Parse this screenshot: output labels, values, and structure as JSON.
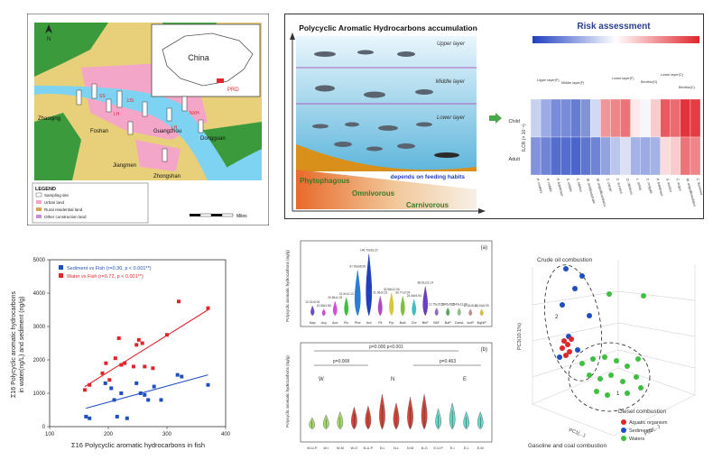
{
  "map_panel": {
    "country_label": "China",
    "region_label": "PRD",
    "north_label": "N",
    "cities": [
      "Zhaoqing",
      "Foshan",
      "Guangzhou",
      "Dongguan",
      "Jiangmen",
      "Zhongshan"
    ],
    "sites": [
      "SS",
      "LH",
      "JJS",
      "LH",
      "NXH"
    ],
    "legend_title": "LEGEND",
    "legend_items": [
      "Sampling site",
      "Urban land",
      "Rural residential land",
      "Other construction land"
    ],
    "scale_unit": "Miles",
    "colors": {
      "urban": "#f4a6c8",
      "forest": "#3a9a3c",
      "crop": "#d9c96b",
      "water": "#7fd3f2"
    }
  },
  "accumulation_panel": {
    "title": "Polycyclic Aromatic Hydrocarbons accumulation",
    "layers": [
      "Upper layer",
      "Middle layer",
      "Lower layer"
    ],
    "feeding_labels": [
      "Phytophagous",
      "Omnivorous",
      "Carnivorous"
    ],
    "caption": "depends on feeding habits"
  },
  "risk_panel": {
    "title": "Risk assessment",
    "row_labels": [
      "Child",
      "Adult"
    ],
    "axis_label": "ILCR (× 10⁻⁶)",
    "groups": [
      "Upper layer(F)",
      "Middle layer(F)",
      "Lower layer(F)",
      "Benthic(O)",
      "Lower layer(C)",
      "Benthic(C)"
    ],
    "species": [
      "H. molitrix",
      "H. nobilis",
      "P. fulvidraco",
      "A. nobilis",
      "C. idellus",
      "M. amblycephala",
      "M. anguillicaudatus",
      "C. carpio",
      "C. auratus",
      "O. niloticus",
      "L. rohita",
      "C. mrigala",
      "P. fulvidraco",
      "S. asotus",
      "C. argus",
      "M. anguillicaudatus",
      "C. fluminea"
    ],
    "child_values": [
      0.38,
      0.28,
      0.2,
      0.2,
      0.16,
      0.22,
      0.4,
      0.74,
      0.78,
      0.82,
      0.55,
      0.48,
      0.62,
      0.88,
      0.84,
      0.97,
      0.95
    ],
    "adult_values": [
      0.22,
      0.18,
      0.12,
      0.12,
      0.1,
      0.14,
      0.18,
      0.26,
      0.35,
      0.42,
      0.3,
      0.28,
      0.3,
      0.58,
      0.62,
      0.82,
      0.78
    ]
  },
  "scatter_panel": {
    "ylabel_line1": "Σ16 Polycyclic aromatic hydrocarbons",
    "ylabel_line2": "in water(ng/L) and sediment (ng/g)",
    "xlabel": "Σ16 Polycyclic aromatic hydrocarbons in fish",
    "legend": [
      "Sediment vs Fish (r=0.30, p < 0.001**)",
      "Water vs Fish (r=0.72, p < 0.001**)"
    ],
    "chart_data": {
      "type": "scatter",
      "xlim": [
        100,
        400
      ],
      "ylim": [
        0,
        5000
      ],
      "x_ticks": [
        100,
        200,
        300,
        400
      ],
      "y_ticks": [
        0,
        1000,
        2000,
        3000,
        4000,
        5000
      ],
      "series": [
        {
          "name": "Sediment vs Fish",
          "color": "#1f4fbf",
          "points": [
            [
              162,
              300
            ],
            [
              168,
              250
            ],
            [
              195,
              1300
            ],
            [
              205,
              1150
            ],
            [
              210,
              800
            ],
            [
              215,
              300
            ],
            [
              222,
              1000
            ],
            [
              232,
              250
            ],
            [
              248,
              1300
            ],
            [
              255,
              1000
            ],
            [
              262,
              950
            ],
            [
              268,
              800
            ],
            [
              278,
              1200
            ],
            [
              290,
              800
            ],
            [
              318,
              1550
            ],
            [
              325,
              1500
            ],
            [
              370,
              1250
            ]
          ],
          "fit": [
            [
              162,
              550
            ],
            [
              370,
              1550
            ]
          ]
        },
        {
          "name": "Water vs Fish",
          "color": "#e0262d",
          "points": [
            [
              160,
              1100
            ],
            [
              168,
              1250
            ],
            [
              190,
              1600
            ],
            [
              196,
              1900
            ],
            [
              202,
              1400
            ],
            [
              212,
              2050
            ],
            [
              218,
              2650
            ],
            [
              222,
              1850
            ],
            [
              228,
              1900
            ],
            [
              243,
              1800
            ],
            [
              248,
              2450
            ],
            [
              252,
              2600
            ],
            [
              258,
              2500
            ],
            [
              262,
              1800
            ],
            [
              276,
              1750
            ],
            [
              300,
              2750
            ],
            [
              320,
              3750
            ],
            [
              370,
              3550
            ]
          ],
          "fit": [
            [
              160,
              1200
            ],
            [
              370,
              3500
            ]
          ]
        }
      ]
    }
  },
  "violin_panel_a": {
    "panel_tag": "(a)",
    "ylabel": "Polycyclic aromatic hydrocarbons (ng/g)",
    "categories": [
      "Nap",
      "Acy",
      "Ace",
      "Flu",
      "Phe",
      "Ant",
      "Flt",
      "Pyr",
      "BaA",
      "Chr",
      "BbF",
      "BkF",
      "BaP",
      "DahA",
      "IcdP",
      "BghiP"
    ],
    "peak_labels": [
      "12.31±0.06",
      "10.58±2.86",
      "20.56±1.09",
      "21.9±13.13",
      "97.99±68.99",
      "146.70±93.20",
      "31.06±0.15",
      "32.98±12.06",
      "30.77±2.09",
      "24.06±5.94",
      "38.61±22.14",
      "12.75±15.09",
      "13.45±5.26",
      "13.43±13.06",
      "10.32±5.49",
      "11.24±5.93"
    ],
    "heights": [
      0.15,
      0.1,
      0.22,
      0.28,
      0.7,
      0.95,
      0.3,
      0.35,
      0.3,
      0.25,
      0.45,
      0.12,
      0.12,
      0.12,
      0.1,
      0.1
    ],
    "colors": [
      "#6b4fbf",
      "#c84fd0",
      "#d34fd8",
      "#3fbf3f",
      "#2a7fd4",
      "#1f3fbf",
      "#b048c8",
      "#d4c83f",
      "#7fbf3f",
      "#3fbfbf",
      "#6b3fbf",
      "#8f6fbf",
      "#5fa05f",
      "#8fbf8f",
      "#bf8f8f",
      "#d4bf3f"
    ]
  },
  "violin_panel_b": {
    "panel_tag": "(b)",
    "ylabel": "Polycyclic aromatic hydrocarbons (ng/g)",
    "categories": [
      "W-U-P",
      "W-I",
      "W-M",
      "W-O",
      "N-U-P",
      "N-I",
      "N-L",
      "N-M",
      "N-O",
      "E-U-P",
      "E-I",
      "E-L",
      "E-M"
    ],
    "group_labels": [
      "W",
      "N",
      "E"
    ],
    "p_labels": [
      "p=0.000 p<0.001",
      "p=0.008",
      "p=0.463"
    ],
    "heights": [
      0.2,
      0.25,
      0.3,
      0.38,
      0.4,
      0.6,
      0.45,
      0.55,
      0.6,
      0.35,
      0.45,
      0.3,
      0.3
    ],
    "colors": [
      "#a8d86a",
      "#a8d86a",
      "#a8d86a",
      "#d8443a",
      "#d8443a",
      "#d8443a",
      "#d8443a",
      "#d8443a",
      "#d8443a",
      "#6ad8c8",
      "#6ad8c8",
      "#6ad8c8",
      "#6ad8c8"
    ]
  },
  "pca_panel": {
    "title": "Crude oil combustion",
    "cluster_labels": [
      "2",
      "1"
    ],
    "axis_z": "PC3(10.1%)",
    "axis_x": "PC1(...)",
    "axis_y": "PC2(...)",
    "bottom_label": "Gasoline and coal combustion",
    "right_label": "Diesel combustion",
    "legend": [
      "Aquatic organism",
      "Sediments",
      "Waters"
    ],
    "legend_colors": [
      "#e0262d",
      "#1f4fbf",
      "#3fbf3f"
    ]
  }
}
